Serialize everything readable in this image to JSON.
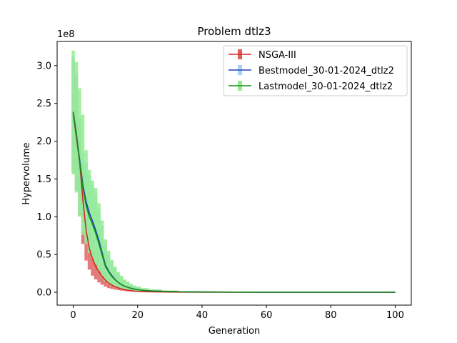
{
  "chart_data": {
    "type": "line",
    "title": "Problem dtlz3",
    "xlabel": "Generation",
    "ylabel": "Hypervolume",
    "offset_text": "1e8",
    "xlim": [
      -5,
      105
    ],
    "ylim": [
      -0.17,
      3.32
    ],
    "x_ticks": [
      0,
      20,
      40,
      60,
      80,
      100
    ],
    "x_tick_labels": [
      "0",
      "20",
      "40",
      "60",
      "80",
      "100"
    ],
    "y_ticks": [
      0.0,
      0.5,
      1.0,
      1.5,
      2.0,
      2.5,
      3.0
    ],
    "y_tick_labels": [
      "0.0",
      "0.5",
      "1.0",
      "1.5",
      "2.0",
      "2.5",
      "3.0"
    ],
    "legend_position": "top-right",
    "x": [
      0,
      1,
      2,
      3,
      4,
      5,
      6,
      7,
      8,
      9,
      10,
      11,
      12,
      13,
      14,
      15,
      16,
      17,
      18,
      19,
      20,
      22,
      25,
      30,
      35,
      40,
      50,
      60,
      70,
      80,
      90,
      100
    ],
    "series": [
      {
        "name": "NSGA-III",
        "color": "#d62728",
        "band_color": "#e06060",
        "mean": [
          2.36,
          2.05,
          1.72,
          1.22,
          0.82,
          0.58,
          0.44,
          0.34,
          0.27,
          0.21,
          0.16,
          0.12,
          0.095,
          0.075,
          0.058,
          0.045,
          0.035,
          0.027,
          0.021,
          0.016,
          0.012,
          0.008,
          0.005,
          0.003,
          0.002,
          0.0012,
          0.0006,
          0.0004,
          0.0003,
          0.0002,
          0.0001,
          0.0001
        ],
        "lower": [
          1.62,
          1.35,
          1.02,
          0.64,
          0.42,
          0.3,
          0.22,
          0.17,
          0.13,
          0.1,
          0.075,
          0.055,
          0.045,
          0.035,
          0.028,
          0.022,
          0.017,
          0.013,
          0.01,
          0.008,
          0.006,
          0.004,
          0.002,
          0.001,
          0.0007,
          0.0004,
          0.0002,
          0.0001,
          0.0001,
          0.0,
          0.0,
          0.0
        ],
        "upper": [
          3.08,
          2.85,
          2.25,
          1.7,
          1.25,
          0.9,
          0.7,
          0.55,
          0.44,
          0.34,
          0.27,
          0.21,
          0.16,
          0.13,
          0.1,
          0.08,
          0.06,
          0.048,
          0.038,
          0.03,
          0.024,
          0.015,
          0.01,
          0.006,
          0.004,
          0.0025,
          0.0012,
          0.0008,
          0.0006,
          0.0004,
          0.0003,
          0.0002
        ]
      },
      {
        "name": "Bestmodel_30-01-2024_dtlz2",
        "color": "#1f3fbf",
        "band_color": "#a9d0f0",
        "mean": [
          2.38,
          2.08,
          1.75,
          1.42,
          1.2,
          1.05,
          0.94,
          0.82,
          0.68,
          0.52,
          0.36,
          0.28,
          0.22,
          0.17,
          0.13,
          0.1,
          0.08,
          0.065,
          0.052,
          0.042,
          0.034,
          0.024,
          0.016,
          0.01,
          0.006,
          0.004,
          0.002,
          0.001,
          0.0006,
          0.0004,
          0.0003,
          0.0002
        ],
        "lower": [
          1.58,
          1.35,
          1.05,
          0.8,
          0.68,
          0.55,
          0.46,
          0.38,
          0.3,
          0.22,
          0.16,
          0.12,
          0.09,
          0.07,
          0.055,
          0.043,
          0.034,
          0.027,
          0.021,
          0.017,
          0.014,
          0.01,
          0.006,
          0.004,
          0.002,
          0.0015,
          0.0008,
          0.0004,
          0.0002,
          0.0001,
          0.0001,
          0.0
        ],
        "upper": [
          3.12,
          2.9,
          2.3,
          1.85,
          1.72,
          1.55,
          1.42,
          1.3,
          1.1,
          0.88,
          0.65,
          0.5,
          0.4,
          0.32,
          0.25,
          0.2,
          0.16,
          0.13,
          0.1,
          0.085,
          0.07,
          0.05,
          0.035,
          0.022,
          0.013,
          0.008,
          0.004,
          0.002,
          0.0012,
          0.0008,
          0.0006,
          0.0004
        ]
      },
      {
        "name": "Lastmodel_30-01-2024_dtlz2",
        "color": "#1a8c1a",
        "band_color": "#90ee90",
        "mean": [
          2.39,
          2.1,
          1.72,
          1.38,
          1.15,
          1.0,
          0.9,
          0.78,
          0.64,
          0.49,
          0.34,
          0.27,
          0.21,
          0.165,
          0.13,
          0.1,
          0.08,
          0.065,
          0.052,
          0.042,
          0.034,
          0.024,
          0.016,
          0.01,
          0.006,
          0.004,
          0.002,
          0.001,
          0.0006,
          0.0004,
          0.0003,
          0.0002
        ],
        "lower": [
          1.56,
          1.32,
          1.0,
          0.76,
          0.64,
          0.52,
          0.44,
          0.36,
          0.28,
          0.21,
          0.15,
          0.11,
          0.085,
          0.065,
          0.05,
          0.04,
          0.032,
          0.025,
          0.02,
          0.016,
          0.013,
          0.009,
          0.006,
          0.004,
          0.002,
          0.0015,
          0.0008,
          0.0004,
          0.0002,
          0.0001,
          0.0001,
          0.0
        ],
        "upper": [
          3.2,
          3.05,
          2.7,
          2.35,
          1.88,
          1.62,
          1.48,
          1.38,
          1.18,
          0.95,
          0.7,
          0.55,
          0.43,
          0.34,
          0.27,
          0.22,
          0.17,
          0.14,
          0.11,
          0.09,
          0.075,
          0.055,
          0.038,
          0.024,
          0.014,
          0.009,
          0.005,
          0.0025,
          0.0015,
          0.001,
          0.0008,
          0.0005
        ]
      }
    ]
  }
}
